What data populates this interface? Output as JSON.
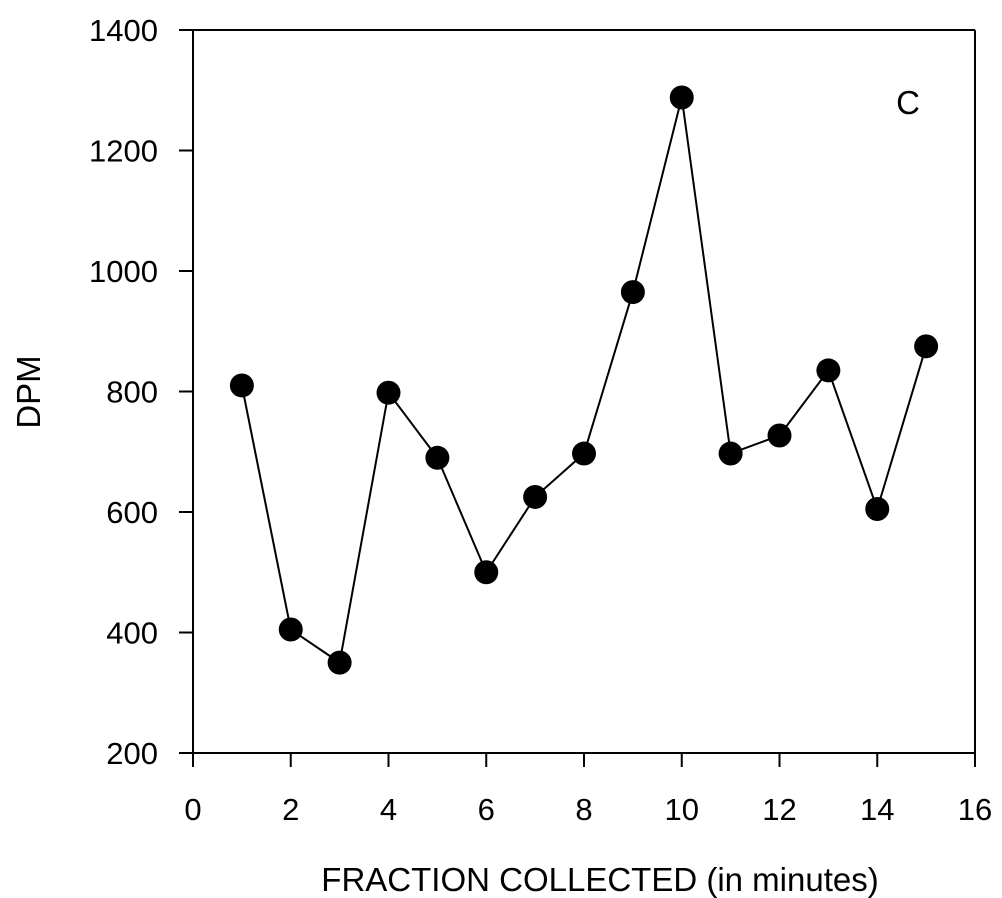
{
  "chart_data": {
    "type": "line",
    "panel_label": "C",
    "xlabel": "FRACTION COLLECTED (in minutes)",
    "ylabel": "DPM",
    "xlim": [
      0,
      16
    ],
    "ylim": [
      200,
      1400
    ],
    "xticks": [
      "0",
      "2",
      "4",
      "6",
      "8",
      "10",
      "12",
      "14",
      "16"
    ],
    "yticks": [
      "200",
      "400",
      "600",
      "800",
      "1000",
      "1200",
      "1400"
    ],
    "grid": false,
    "legend": "none",
    "marker": "filled-circle",
    "line_color": "#000000",
    "series": [
      {
        "x": [
          1,
          2,
          3,
          4,
          5,
          6,
          7,
          8,
          9,
          10,
          11,
          12,
          13,
          14,
          15
        ],
        "values": [
          810,
          405,
          350,
          798,
          690,
          500,
          625,
          697,
          965,
          1288,
          697,
          727,
          835,
          605,
          875
        ]
      }
    ]
  }
}
